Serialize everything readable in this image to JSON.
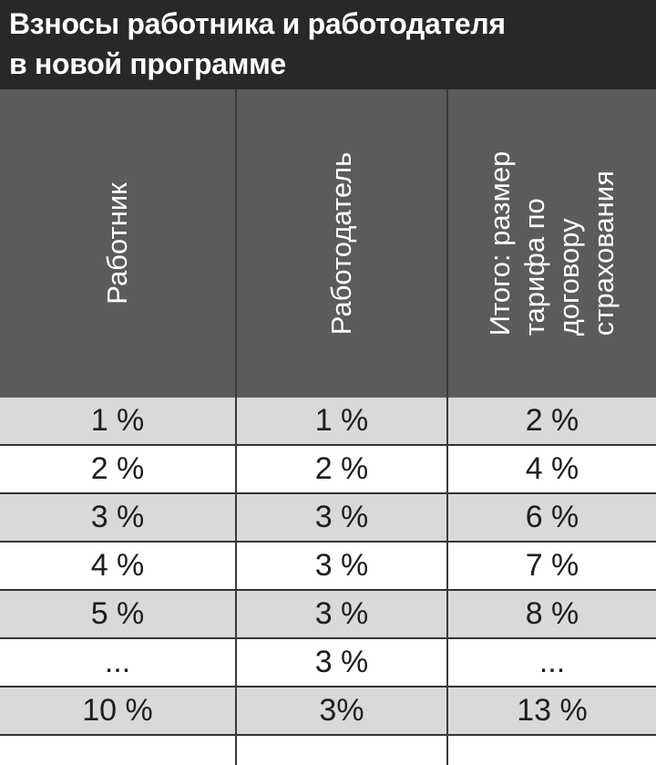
{
  "title": {
    "line1": "Взносы работника и работодателя",
    "line2": "в новой программе"
  },
  "table": {
    "columns": [
      {
        "lines": [
          "Работник"
        ]
      },
      {
        "lines": [
          "Работодатель"
        ]
      },
      {
        "lines": [
          "Итого: размер",
          "тарифа по",
          "договору",
          "страхования"
        ]
      }
    ],
    "rows": [
      [
        "1 %",
        "1 %",
        "2 %"
      ],
      [
        "2 %",
        "2 %",
        "4 %"
      ],
      [
        "3 %",
        "3 %",
        "6 %"
      ],
      [
        "4 %",
        "3 %",
        "7 %"
      ],
      [
        "5 %",
        "3 %",
        "8 %"
      ],
      [
        "...",
        "3 %",
        "..."
      ],
      [
        "10 %",
        "3%",
        "13 %"
      ]
    ]
  },
  "colors": {
    "title_bg": "#282828",
    "header_bg": "#5b5b5b",
    "row_shade": "#d9d9d9",
    "row_plain": "#ffffff"
  }
}
